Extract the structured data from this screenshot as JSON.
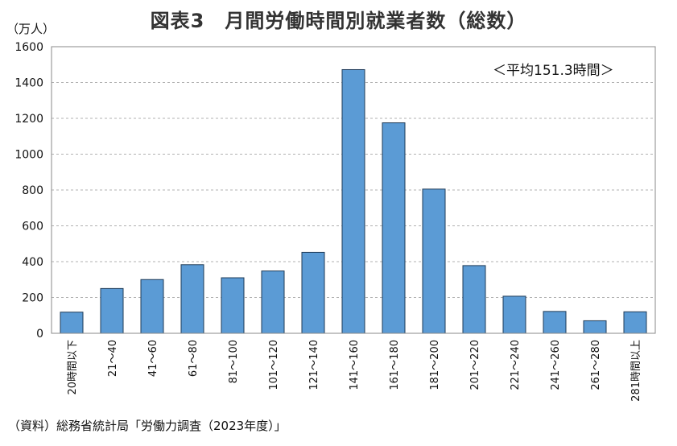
{
  "title": "図表3　月間労働時間別就業者数（総数）",
  "source": "（資料）総務省統計局「労働力調査（2023年度）」",
  "chart_data": {
    "type": "bar",
    "title": "図表3　月間労働時間別就業者数（総数）",
    "ylabel": "（万人）",
    "xlabel": "",
    "ylim": [
      0,
      1600
    ],
    "yticks": [
      0,
      200,
      400,
      600,
      800,
      1000,
      1200,
      1400,
      1600
    ],
    "grid": true,
    "categories": [
      "20時間以下",
      "21～40",
      "41～60",
      "61～80",
      "81～100",
      "101～120",
      "121～140",
      "141～160",
      "161～180",
      "181～200",
      "201～220",
      "221～240",
      "241～260",
      "261～280",
      "281時間以上"
    ],
    "values": [
      118,
      250,
      300,
      383,
      310,
      348,
      452,
      1472,
      1175,
      805,
      378,
      207,
      122,
      70,
      120
    ],
    "annotation": "＜平均151.3時間＞",
    "bar_color": "#5b9bd5"
  }
}
